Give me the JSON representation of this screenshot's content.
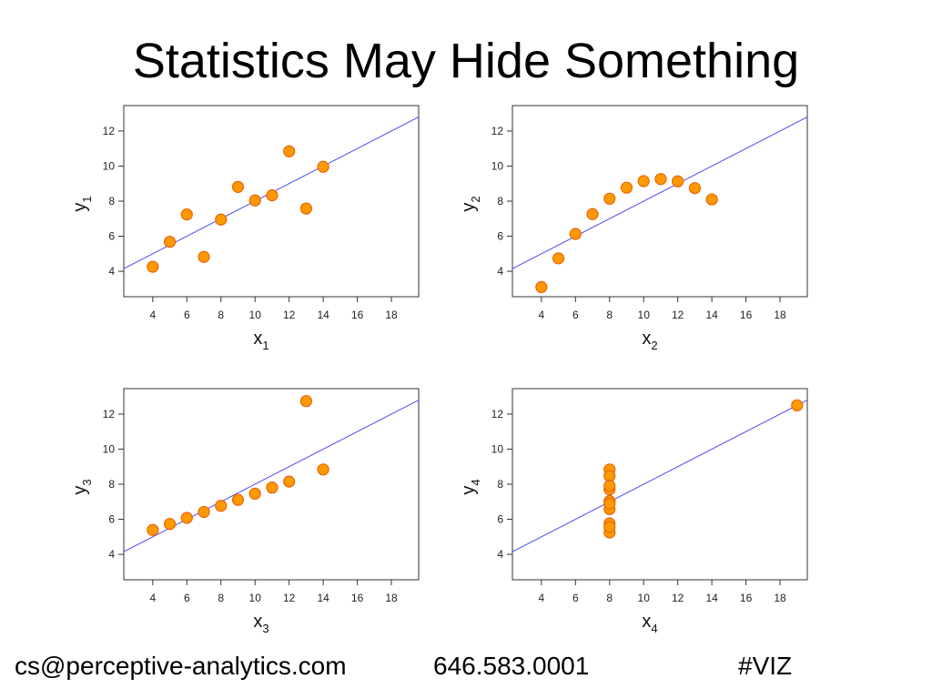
{
  "slide": {
    "title": "Statistics May Hide Something"
  },
  "footer": {
    "email": "cs@perceptive-analytics.com",
    "phone": "646.583.0001",
    "hashtag": "#VIZ"
  },
  "colors": {
    "point_fill": "#FF9900",
    "point_stroke": "#E8640A",
    "fit_line": "#4C4CF0",
    "frame": "#333333",
    "tick_text": "#222222"
  },
  "chart_data": [
    {
      "type": "scatter",
      "xlabel": "x",
      "xlabel_sub": "1",
      "ylabel": "y",
      "ylabel_sub": "1",
      "xlim": [
        2.3,
        19.6
      ],
      "ylim": [
        2.55,
        13.45
      ],
      "xticks": [
        4,
        6,
        8,
        10,
        12,
        14,
        16,
        18
      ],
      "yticks": [
        4,
        6,
        8,
        10,
        12
      ],
      "fit": {
        "intercept": 3.0,
        "slope": 0.5
      },
      "points": [
        [
          10,
          8.04
        ],
        [
          8,
          6.95
        ],
        [
          13,
          7.58
        ],
        [
          9,
          8.81
        ],
        [
          11,
          8.33
        ],
        [
          14,
          9.96
        ],
        [
          6,
          7.24
        ],
        [
          4,
          4.26
        ],
        [
          12,
          10.84
        ],
        [
          7,
          4.82
        ],
        [
          5,
          5.68
        ]
      ]
    },
    {
      "type": "scatter",
      "xlabel": "x",
      "xlabel_sub": "2",
      "ylabel": "y",
      "ylabel_sub": "2",
      "xlim": [
        2.3,
        19.6
      ],
      "ylim": [
        2.55,
        13.45
      ],
      "xticks": [
        4,
        6,
        8,
        10,
        12,
        14,
        16,
        18
      ],
      "yticks": [
        4,
        6,
        8,
        10,
        12
      ],
      "fit": {
        "intercept": 3.0,
        "slope": 0.5
      },
      "points": [
        [
          10,
          9.14
        ],
        [
          8,
          8.14
        ],
        [
          13,
          8.74
        ],
        [
          9,
          8.77
        ],
        [
          11,
          9.26
        ],
        [
          14,
          8.1
        ],
        [
          6,
          6.13
        ],
        [
          4,
          3.1
        ],
        [
          12,
          9.13
        ],
        [
          7,
          7.26
        ],
        [
          5,
          4.74
        ]
      ]
    },
    {
      "type": "scatter",
      "xlabel": "x",
      "xlabel_sub": "3",
      "ylabel": "y",
      "ylabel_sub": "3",
      "xlim": [
        2.3,
        19.6
      ],
      "ylim": [
        2.55,
        13.45
      ],
      "xticks": [
        4,
        6,
        8,
        10,
        12,
        14,
        16,
        18
      ],
      "yticks": [
        4,
        6,
        8,
        10,
        12
      ],
      "fit": {
        "intercept": 3.0,
        "slope": 0.5
      },
      "points": [
        [
          10,
          7.46
        ],
        [
          8,
          6.77
        ],
        [
          13,
          12.74
        ],
        [
          9,
          7.11
        ],
        [
          11,
          7.81
        ],
        [
          14,
          8.84
        ],
        [
          6,
          6.08
        ],
        [
          4,
          5.39
        ],
        [
          12,
          8.15
        ],
        [
          7,
          6.42
        ],
        [
          5,
          5.73
        ]
      ]
    },
    {
      "type": "scatter",
      "xlabel": "x",
      "xlabel_sub": "4",
      "ylabel": "y",
      "ylabel_sub": "4",
      "xlim": [
        2.3,
        19.6
      ],
      "ylim": [
        2.55,
        13.45
      ],
      "xticks": [
        4,
        6,
        8,
        10,
        12,
        14,
        16,
        18
      ],
      "yticks": [
        4,
        6,
        8,
        10,
        12
      ],
      "fit": {
        "intercept": 3.0,
        "slope": 0.5
      },
      "points": [
        [
          8,
          6.58
        ],
        [
          8,
          5.76
        ],
        [
          8,
          7.71
        ],
        [
          8,
          8.84
        ],
        [
          8,
          8.47
        ],
        [
          8,
          7.04
        ],
        [
          8,
          5.25
        ],
        [
          19,
          12.5
        ],
        [
          8,
          5.56
        ],
        [
          8,
          7.91
        ],
        [
          8,
          6.89
        ]
      ]
    }
  ]
}
